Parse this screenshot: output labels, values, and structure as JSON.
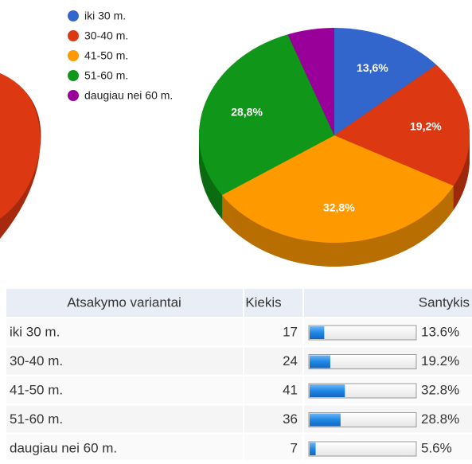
{
  "chart_data": {
    "type": "pie",
    "categories": [
      "iki 30 m.",
      "30-40 m.",
      "41-50 m.",
      "51-60 m.",
      "daugiau nei 60 m."
    ],
    "values": [
      13.6,
      19.2,
      32.8,
      28.8,
      5.6
    ],
    "value_labels": [
      "13,6%",
      "19,2%",
      "32,8%",
      "28,8%",
      null
    ],
    "colors": [
      "#3366cc",
      "#dc3912",
      "#ff9900",
      "#109618",
      "#990099"
    ],
    "legend": "top-left"
  },
  "table": {
    "header": [
      "Atsakymo variantai",
      "Kiekis",
      "Santykis"
    ],
    "rows": [
      {
        "label": "iki 30 m.",
        "count": 17,
        "share": 13.6,
        "share_label": "13.6%"
      },
      {
        "label": "30-40 m.",
        "count": 24,
        "share": 19.2,
        "share_label": "19.2%"
      },
      {
        "label": "41-50 m.",
        "count": 41,
        "share": 32.8,
        "share_label": "32.8%"
      },
      {
        "label": "51-60 m.",
        "count": 36,
        "share": 28.8,
        "share_label": "28.8%"
      },
      {
        "label": "daugiau nei 60 m.",
        "count": 7,
        "share": 5.6,
        "share_label": "5.6%"
      }
    ]
  }
}
